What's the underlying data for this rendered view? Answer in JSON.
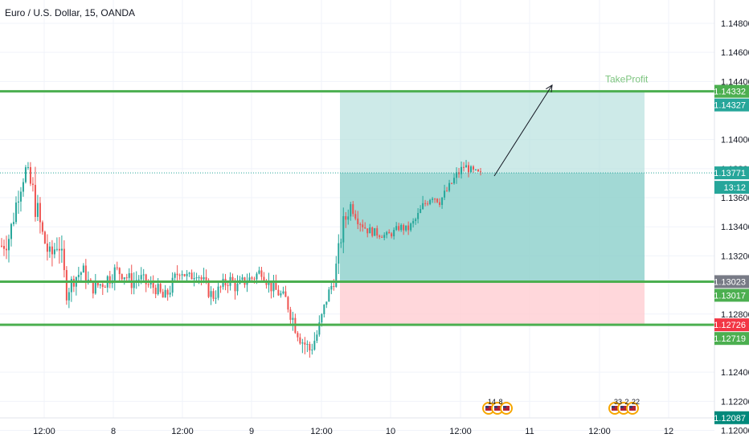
{
  "header": {
    "title": "Euro / U.S. Dollar, 15, OANDA"
  },
  "colors": {
    "up": "#26a69a",
    "down": "#ef5350",
    "level_line": "#4caf50",
    "profit_zone": "#b2dfdb",
    "loss_zone": "#ffcdd2",
    "badge_green": "#4caf50",
    "badge_teal": "#26a69a",
    "badge_grey": "#787b86",
    "badge_red": "#f23645",
    "badge_dark_teal": "#00897b"
  },
  "chart_data": {
    "type": "candlestick",
    "symbol": "EURUSD",
    "ylim": [
      1.1192,
      1.1496
    ],
    "yticks": [
      "1.14800",
      "1.14600",
      "1.14400",
      "1.14000",
      "1.13800",
      "1.13600",
      "1.13400",
      "1.13200",
      "1.12800",
      "1.12400",
      "1.12200",
      "1.12000"
    ],
    "xticks": [
      "12:00",
      "8",
      "12:00",
      "9",
      "12:00",
      "10",
      "12:00",
      "11",
      "12:00",
      "12"
    ],
    "horizontal_levels": [
      1.14332,
      1.13023,
      1.12726
    ],
    "last_price": 1.13771,
    "position": {
      "entry": 1.13023,
      "take_profit": 1.14332,
      "stop": 1.12726,
      "label": "TakeProfit"
    },
    "price_badges": [
      {
        "text": "1.14332",
        "value": 1.14332,
        "color": "badge_green"
      },
      {
        "text": "1.14327",
        "value": 1.14327,
        "color": "badge_teal"
      },
      {
        "text": "1.13771",
        "value": 1.13771,
        "color": "badge_teal"
      },
      {
        "text": "13:12",
        "value": 1.13771,
        "color": "badge_teal",
        "countdown": true
      },
      {
        "text": "1.13023",
        "value": 1.13023,
        "color": "badge_grey"
      },
      {
        "text": "1.13017",
        "value": 1.13017,
        "color": "badge_green"
      },
      {
        "text": "1.12726",
        "value": 1.12726,
        "color": "badge_red"
      },
      {
        "text": "1.12719",
        "value": 1.12719,
        "color": "badge_green"
      },
      {
        "text": "1.12087",
        "value": 1.12087,
        "color": "badge_dark_teal"
      }
    ],
    "path": [
      1.1327,
      1.1334,
      1.1362,
      1.138,
      1.136,
      1.1335,
      1.1318,
      1.1332,
      1.1296,
      1.1305,
      1.131,
      1.1298,
      1.13,
      1.1304,
      1.131,
      1.1308,
      1.1302,
      1.1305,
      1.13,
      1.1298,
      1.129,
      1.13,
      1.1312,
      1.1304,
      1.131,
      1.13,
      1.1292,
      1.1298,
      1.1304,
      1.1298,
      1.1303,
      1.1305,
      1.131,
      1.13,
      1.1295,
      1.129,
      1.1275,
      1.1262,
      1.1255,
      1.1268,
      1.129,
      1.1305,
      1.134,
      1.1355,
      1.1345,
      1.1338,
      1.1336,
      1.1334,
      1.1335,
      1.134,
      1.1338,
      1.1345,
      1.1355,
      1.1362,
      1.1358,
      1.1366,
      1.1375,
      1.1382,
      1.1378,
      1.1376
    ],
    "path_lows": [
      1.1295,
      1.132,
      1.1345,
      1.1362,
      1.1312,
      1.13,
      1.1296,
      1.1283,
      1.128,
      1.1287,
      1.1287,
      1.1284,
      1.1282,
      1.1275,
      1.1293,
      1.1286,
      1.1285,
      1.1286,
      1.1284,
      1.128,
      1.1273,
      1.1285,
      1.1288,
      1.1292,
      1.1292,
      1.1281,
      1.1276,
      1.1282,
      1.1287,
      1.1286,
      1.1285,
      1.129,
      1.1294,
      1.1286,
      1.128,
      1.1272,
      1.1252,
      1.1241,
      1.1243,
      1.1251,
      1.1278,
      1.1298,
      1.1315,
      1.134,
      1.1332,
      1.133,
      1.1328,
      1.1329,
      1.133,
      1.1334,
      1.1332,
      1.1338,
      1.1343,
      1.135,
      1.135,
      1.1355,
      1.1362,
      1.1372,
      1.137,
      1.137
    ],
    "path_highs": [
      1.134,
      1.1372,
      1.1384,
      1.1388,
      1.138,
      1.1342,
      1.1342,
      1.1335,
      1.132,
      1.1316,
      1.1318,
      1.1315,
      1.1309,
      1.1316,
      1.1322,
      1.1316,
      1.1316,
      1.1315,
      1.131,
      1.1308,
      1.1304,
      1.1315,
      1.132,
      1.1318,
      1.132,
      1.1314,
      1.1302,
      1.131,
      1.1316,
      1.1316,
      1.1314,
      1.1317,
      1.1318,
      1.1315,
      1.1305,
      1.1298,
      1.1292,
      1.128,
      1.1273,
      1.1286,
      1.1302,
      1.1328,
      1.1358,
      1.1362,
      1.1358,
      1.1348,
      1.1345,
      1.1341,
      1.1343,
      1.135,
      1.1348,
      1.1354,
      1.1368,
      1.137,
      1.1372,
      1.1374,
      1.1385,
      1.139,
      1.1386,
      1.1384
    ]
  },
  "annotations": {
    "events": [
      {
        "labels": [
          "14",
          "8"
        ]
      },
      {
        "labels": [
          "33",
          "2",
          "22"
        ]
      }
    ]
  }
}
